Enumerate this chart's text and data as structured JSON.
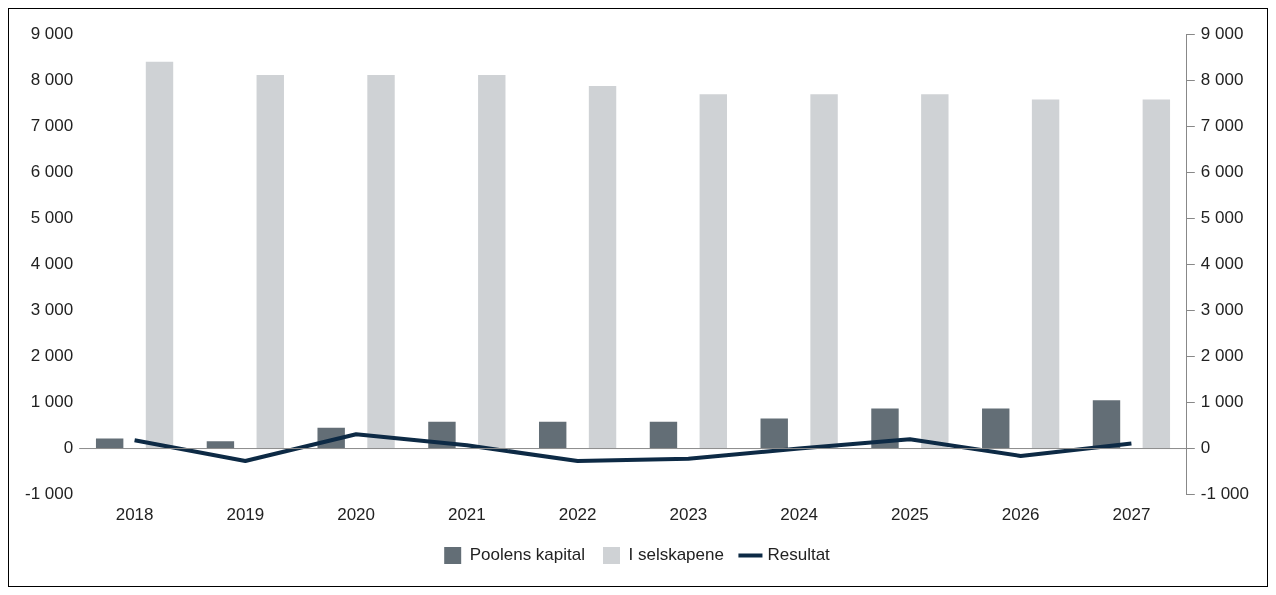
{
  "chart_data": {
    "type": "bar",
    "categories": [
      "2018",
      "2019",
      "2020",
      "2021",
      "2022",
      "2023",
      "2024",
      "2025",
      "2026",
      "2027"
    ],
    "series": [
      {
        "name": "Poolens kapital",
        "color": "#636e76",
        "values": [
          220,
          160,
          450,
          580,
          580,
          580,
          650,
          870,
          870,
          1050
        ]
      },
      {
        "name": "I selskapene",
        "color": "#cfd2d5",
        "values": [
          8400,
          8110,
          8110,
          8110,
          7870,
          7690,
          7690,
          7690,
          7580,
          7580
        ]
      },
      {
        "name": "Resultat",
        "type": "line",
        "color": "#0d2a45",
        "values": [
          180,
          -270,
          310,
          70,
          -270,
          -220,
          0,
          200,
          -160,
          110
        ]
      }
    ],
    "ylim": [
      -1000,
      9000
    ],
    "yticks": [
      {
        "value": -1000,
        "label": "-1 000"
      },
      0,
      {
        "value": 1000,
        "label": "1 000"
      },
      {
        "value": 2000,
        "label": "2 000"
      },
      {
        "value": 3000,
        "label": "3 000"
      },
      {
        "value": 4000,
        "label": "4 000"
      },
      {
        "value": 5000,
        "label": "5 000"
      },
      {
        "value": 6000,
        "label": "6 000"
      },
      {
        "value": 7000,
        "label": "7 000"
      },
      {
        "value": 8000,
        "label": "8 000"
      },
      {
        "value": 9000,
        "label": "9 000"
      }
    ],
    "y2lim": [
      -1000,
      9000
    ],
    "y2ticks": [
      {
        "value": -1000,
        "label": "-1 000"
      },
      0,
      {
        "value": 1000,
        "label": "1 000"
      },
      {
        "value": 2000,
        "label": "2 000"
      },
      {
        "value": 3000,
        "label": "3 000"
      },
      {
        "value": 4000,
        "label": "4 000"
      },
      {
        "value": 5000,
        "label": "5 000"
      },
      {
        "value": 6000,
        "label": "6 000"
      },
      {
        "value": 7000,
        "label": "7 000"
      },
      {
        "value": 8000,
        "label": "8 000"
      },
      {
        "value": 9000,
        "label": "9 000"
      }
    ],
    "ref_lines": [
      {
        "axis": "y",
        "value": 0,
        "color": "#8c8c8c"
      }
    ],
    "grid": false,
    "legend": "bottom",
    "marker": "none",
    "line_style": "solid"
  }
}
